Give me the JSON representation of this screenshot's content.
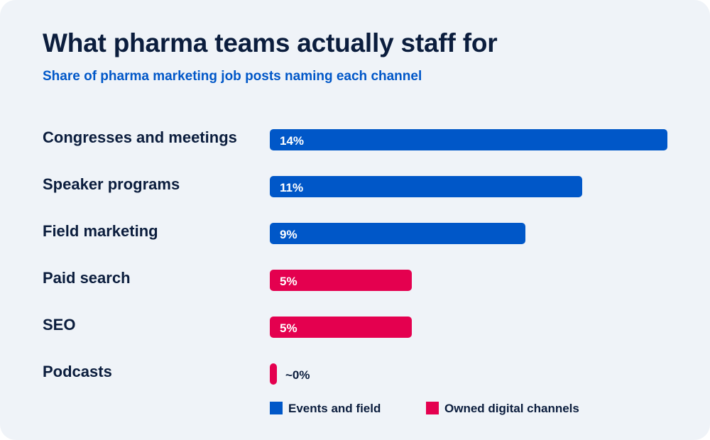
{
  "colors": {
    "events_and_field": "#0057c8",
    "owned_digital": "#e4004f",
    "text_dark": "#0b1d3d",
    "on_bar_text": "#ffffff"
  },
  "chart_data": {
    "type": "bar",
    "orientation": "horizontal",
    "title": "What pharma teams actually staff for",
    "subtitle": "Share of pharma marketing job posts naming each channel",
    "categories": [
      "Congresses and meetings",
      "Speaker programs",
      "Field marketing",
      "Paid search",
      "SEO",
      "Podcasts"
    ],
    "values": [
      14,
      11,
      9,
      5,
      5,
      0
    ],
    "value_labels": [
      "14%",
      "11%",
      "9%",
      "5%",
      "5%",
      "~0%"
    ],
    "groups": [
      "events",
      "events",
      "events",
      "digital",
      "digital",
      "digital"
    ],
    "xlim": [
      0,
      14
    ],
    "grid": false,
    "legend": {
      "placement": "bottom",
      "entries": [
        {
          "key": "events",
          "name": "Events and field",
          "color": "#0057c8"
        },
        {
          "key": "digital",
          "name": "Owned digital channels",
          "color": "#e4004f"
        }
      ]
    }
  }
}
